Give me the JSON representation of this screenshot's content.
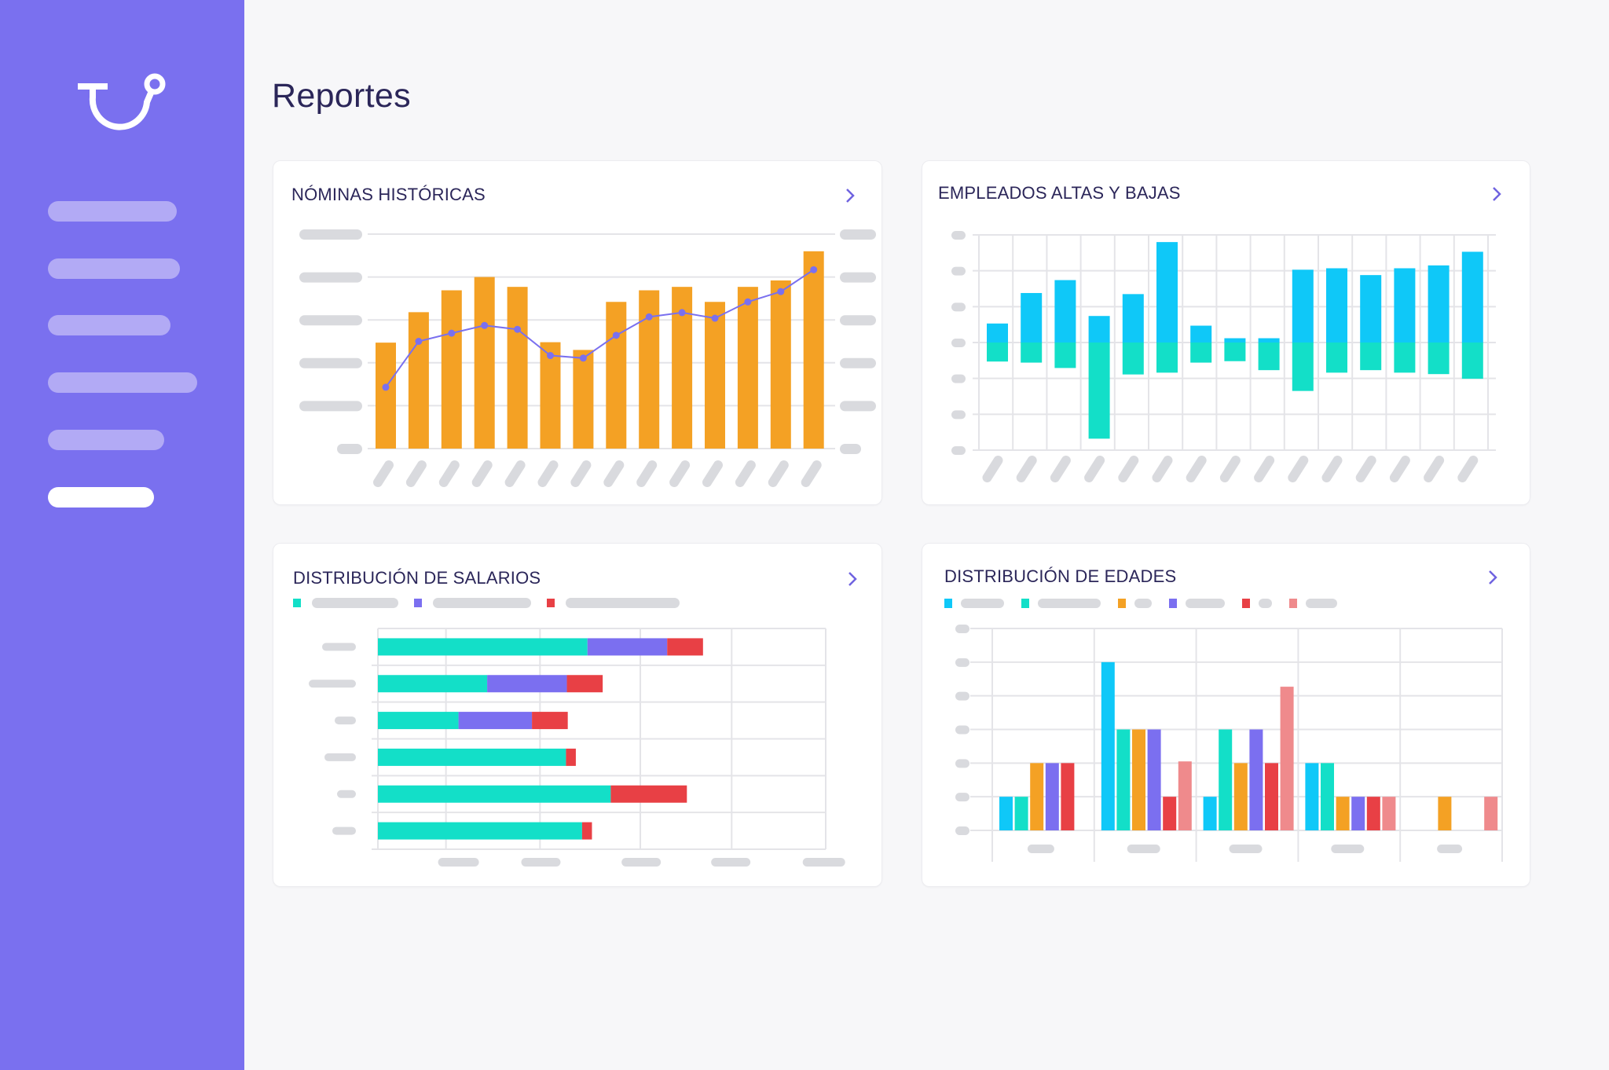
{
  "app": {
    "page_title": "Reportes",
    "sidebar": {
      "logo": "brand-logo-icon",
      "items": [
        {
          "label": "",
          "active": false
        },
        {
          "label": "",
          "active": false
        },
        {
          "label": "",
          "active": false
        },
        {
          "label": "",
          "active": false
        },
        {
          "label": "",
          "active": false
        },
        {
          "label": "",
          "active": true
        }
      ]
    },
    "colors": {
      "sidebar": "#7a70ef",
      "title": "#2b2659",
      "chevron": "#6f63e0",
      "orange": "#f4a124",
      "line": "#7a70ef",
      "cyan": "#0fc8f8",
      "teal": "#13dfc8",
      "purple": "#7b6ff0",
      "red": "#e84045",
      "pink": "#ef8a8c",
      "placeholder": "#d9dade",
      "grid": "#e4e4e8"
    }
  },
  "cards": [
    {
      "title": "NÓMINAS HISTÓRICAS",
      "chevron": "chevron-right-icon"
    },
    {
      "title": "EMPLEADOS ALTAS Y BAJAS",
      "chevron": "chevron-right-icon"
    },
    {
      "title": "DISTRIBUCIÓN DE SALARIOS",
      "chevron": "chevron-right-icon"
    },
    {
      "title": "DISTRIBUCIÓN DE EDADES",
      "chevron": "chevron-right-icon"
    }
  ],
  "chart_data": [
    {
      "id": "nominas",
      "type": "bar",
      "title": "NÓMINAS HISTÓRICAS",
      "categories_count": 14,
      "tick_labels": "placeholder",
      "ylim": [
        0,
        5
      ],
      "grid": true,
      "series": [
        {
          "name": "bars",
          "type": "bar",
          "color": "#f4a124",
          "values": [
            2.47,
            3.18,
            3.69,
            4.0,
            3.77,
            2.48,
            2.3,
            3.42,
            3.69,
            3.77,
            3.42,
            3.77,
            3.92,
            4.6
          ]
        },
        {
          "name": "line",
          "type": "line",
          "color": "#7a70ef",
          "values": [
            1.43,
            2.5,
            2.69,
            2.87,
            2.78,
            2.17,
            2.11,
            2.64,
            3.07,
            3.17,
            3.04,
            3.42,
            3.66,
            4.17
          ]
        }
      ]
    },
    {
      "id": "altas-bajas",
      "type": "bar",
      "title": "EMPLEADOS ALTAS Y BAJAS",
      "categories_count": 15,
      "tick_labels": "placeholder",
      "ylim": [
        -3,
        3
      ],
      "grid": true,
      "series": [
        {
          "name": "altas",
          "color": "#0fc8f8",
          "values": [
            0.53,
            1.38,
            1.74,
            0.74,
            1.35,
            2.8,
            0.47,
            0.12,
            0.12,
            2.03,
            2.07,
            1.88,
            2.07,
            2.15,
            2.53
          ]
        },
        {
          "name": "bajas",
          "color": "#13dfc8",
          "values": [
            -0.53,
            -0.56,
            -0.71,
            -2.68,
            -0.89,
            -0.84,
            -0.56,
            -0.52,
            -0.77,
            -1.35,
            -0.84,
            -0.77,
            -0.84,
            -0.88,
            -1.01
          ]
        }
      ]
    },
    {
      "id": "salarios",
      "type": "bar",
      "orientation": "horizontal",
      "stacked": true,
      "title": "DISTRIBUCIÓN DE SALARIOS",
      "legend": "top-left",
      "categories_count": 6,
      "tick_labels": "placeholder",
      "xlim": [
        0,
        5
      ],
      "grid": true,
      "series": [
        {
          "name": "serie-1",
          "color": "#13dfc8",
          "values": [
            2.34,
            1.22,
            0.9,
            2.1,
            2.6,
            2.28
          ]
        },
        {
          "name": "serie-2",
          "color": "#7b6ff0",
          "values": [
            0.89,
            0.89,
            0.82,
            0,
            0,
            0
          ]
        },
        {
          "name": "serie-3",
          "color": "#e84045",
          "values": [
            0.4,
            0.4,
            0.4,
            0.11,
            0.85,
            0.11
          ]
        }
      ]
    },
    {
      "id": "edades",
      "type": "bar",
      "title": "DISTRIBUCIÓN DE EDADES",
      "legend": "top-left",
      "categories_count": 5,
      "tick_labels": "placeholder",
      "ylim": [
        0,
        6
      ],
      "grid": true,
      "series": [
        {
          "name": "serie-1",
          "color": "#0fc8f8",
          "values": [
            1,
            5,
            1,
            2,
            0
          ]
        },
        {
          "name": "serie-2",
          "color": "#13dfc8",
          "values": [
            1,
            3,
            3,
            2,
            0
          ]
        },
        {
          "name": "serie-3",
          "color": "#f4a124",
          "values": [
            2,
            3,
            2,
            1,
            1
          ]
        },
        {
          "name": "serie-4",
          "color": "#7b6ff0",
          "values": [
            2,
            3,
            3,
            1,
            0
          ]
        },
        {
          "name": "serie-5",
          "color": "#e84045",
          "values": [
            2,
            1,
            2,
            1,
            0
          ]
        },
        {
          "name": "serie-6",
          "color": "#ef8a8c",
          "values": [
            0,
            2.05,
            4.27,
            1,
            1
          ]
        }
      ]
    }
  ]
}
